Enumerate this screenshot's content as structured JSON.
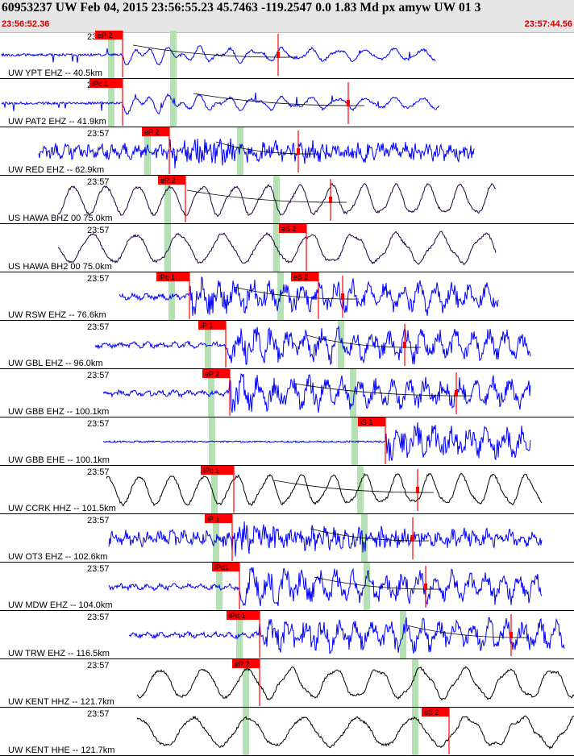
{
  "header": {
    "title": "60953237 UW Feb 04, 2015 23:56:55.23   45.7463 -119.2547  0.0 1.83 Md px amyw UW 01   3",
    "time_start": "23:56:52.36",
    "time_end": "23:57:44.56"
  },
  "colors": {
    "pick": "#ff0000",
    "window": "#b4e0b4",
    "short_period": "#0000ff",
    "broadband": "#000000",
    "horizontal": "#200040",
    "moveout": "#000000"
  },
  "traces": [
    {
      "label": "UW YPT EHZ -- 40.5km",
      "time": "23:57",
      "picks": [
        {
          "label": "eP 2"
        }
      ],
      "color": "short_period",
      "style": "spiky"
    },
    {
      "label": "UW PAT2 EHZ -- 41.9km",
      "time": "23:57",
      "picks": [
        {
          "label": "iPc 1"
        }
      ],
      "color": "short_period",
      "style": "spiky"
    },
    {
      "label": "UW RED EHZ -- 62.9km",
      "time": "23:57",
      "picks": [
        {
          "label": "eP 2"
        }
      ],
      "color": "short_period",
      "style": "noisy"
    },
    {
      "label": "US HAWA BHZ 00 75.0km",
      "time": "23:57",
      "picks": [
        {
          "label": "eP 2"
        }
      ],
      "color": "horizontal",
      "style": "wave"
    },
    {
      "label": "US HAWA BH2 00 75.0km",
      "time": "23:57",
      "picks": [
        {
          "label": "eS 2"
        }
      ],
      "color": "horizontal",
      "style": "wave"
    },
    {
      "label": "UW RSW EHZ -- 76.6km",
      "time": "23:57",
      "picks": [
        {
          "label": "iPc 1"
        },
        {
          "label": "eS 2"
        }
      ],
      "color": "short_period",
      "style": "burst"
    },
    {
      "label": "UW GBL EHZ -- 96.0km",
      "time": "23:57",
      "picks": [
        {
          "label": "iP 1"
        }
      ],
      "color": "short_period",
      "style": "burst"
    },
    {
      "label": "UW GBB EHZ -- 100.1km",
      "time": "23:57",
      "picks": [
        {
          "label": "eP 2"
        }
      ],
      "color": "short_period",
      "style": "burst"
    },
    {
      "label": "UW GBB EHE -- 100.1km",
      "time": "23:57",
      "picks": [
        {
          "label": "iS 1"
        }
      ],
      "color": "short_period",
      "style": "late"
    },
    {
      "label": "UW CCRK HHZ -- 101.5km",
      "time": "23:57",
      "picks": [
        {
          "label": "iPc 1"
        }
      ],
      "color": "broadband",
      "style": "wave"
    },
    {
      "label": "UW OT3 EHZ -- 102.6km",
      "time": "23:57",
      "picks": [
        {
          "label": "iP 1"
        }
      ],
      "color": "short_period",
      "style": "noisy"
    },
    {
      "label": "UW MDW EHZ -- 104.0km",
      "time": "23:57",
      "picks": [
        {
          "label": "iPd1"
        }
      ],
      "color": "short_period",
      "style": "burst"
    },
    {
      "label": "UW TRW EHZ -- 116.5km",
      "time": "23:57",
      "picks": [
        {
          "label": "iPd 1"
        }
      ],
      "color": "short_period",
      "style": "burst"
    },
    {
      "label": "UW KENT HHZ -- 121.7km",
      "time": "23:57",
      "picks": [
        {
          "label": "eP 2"
        }
      ],
      "color": "broadband",
      "style": "wave"
    },
    {
      "label": "UW KENT HHE -- 121.7km",
      "time": "23:57",
      "picks": [
        {
          "label": "eS 2"
        }
      ],
      "color": "broadband",
      "style": "wave"
    }
  ]
}
